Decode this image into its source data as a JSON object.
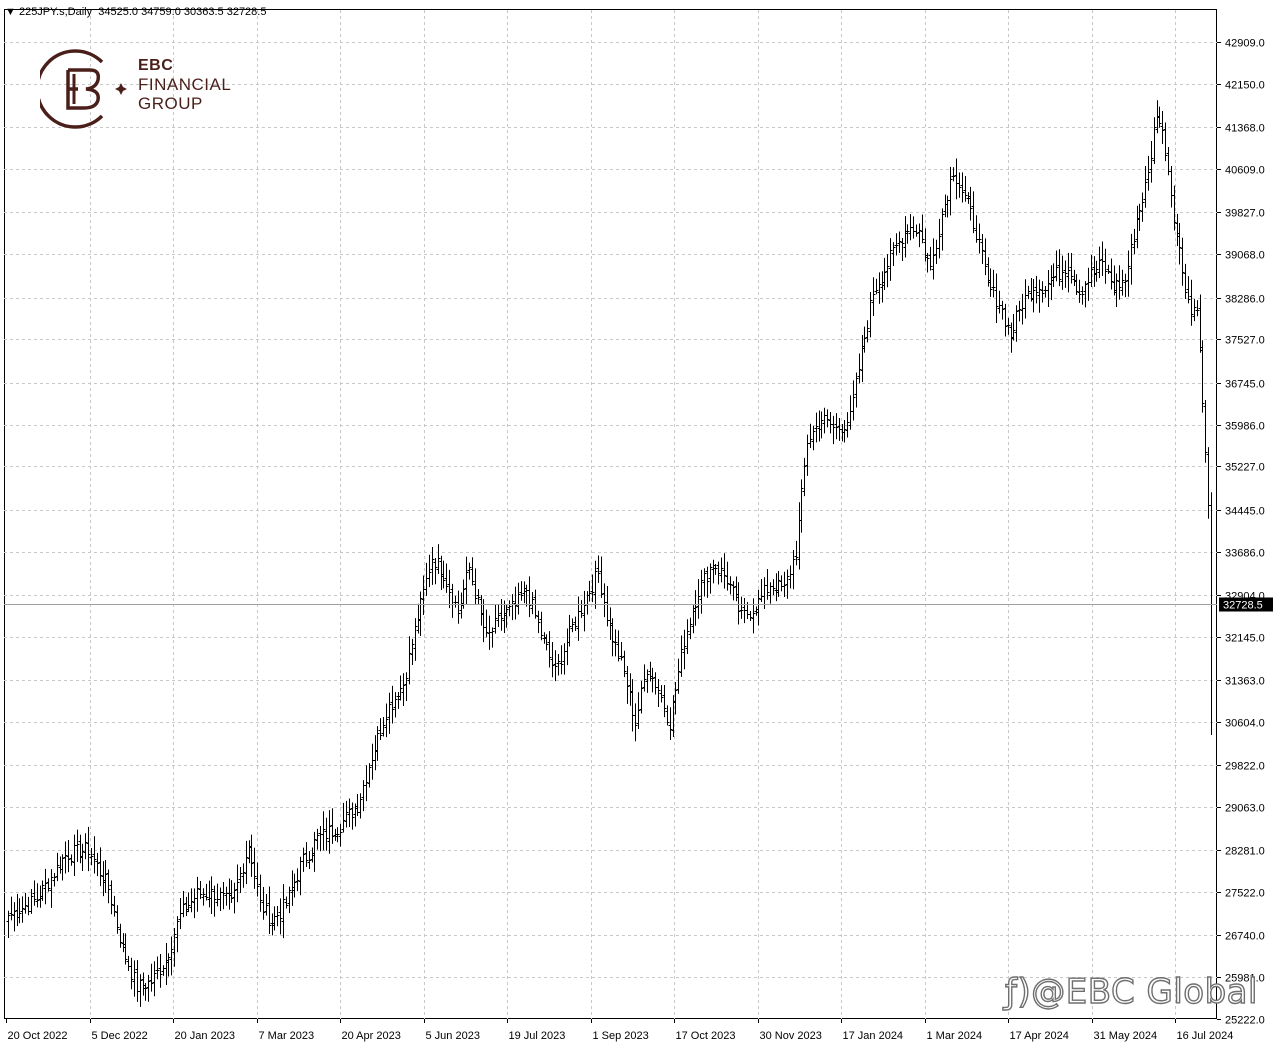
{
  "header": {
    "symbol": "225JPY.s,Daily",
    "ohlc": "34525.0 34759.0 30363.5 32728.5"
  },
  "logo": {
    "line1": "EBC",
    "line2": "FINANCIAL",
    "line3": "GROUP"
  },
  "watermark": "@EBC Global",
  "colors": {
    "background": "#ffffff",
    "bars": "#000000",
    "grid": "#c0c0c0",
    "price_label_bg": "#000000"
  },
  "chart_data": {
    "type": "ohlc",
    "title": "225JPY.s,Daily",
    "ylim": [
      25222.0,
      43293.0
    ],
    "y_ticks": [
      "42909.0",
      "42150.0",
      "41368.0",
      "40609.0",
      "39827.0",
      "39068.0",
      "38286.0",
      "37527.0",
      "36745.0",
      "35986.0",
      "35227.0",
      "34445.0",
      "33686.0",
      "32904.0",
      "32145.0",
      "31363.0",
      "30604.0",
      "29822.0",
      "29063.0",
      "28281.0",
      "27522.0",
      "26740.0",
      "25981.0",
      "25222.0"
    ],
    "x_ticks": [
      "20 Oct 2022",
      "5 Dec 2022",
      "20 Jan 2023",
      "7 Mar 2023",
      "20 Apr 2023",
      "5 Jun 2023",
      "19 Jul 2023",
      "1 Sep 2023",
      "17 Oct 2023",
      "30 Nov 2023",
      "17 Jan 2024",
      "1 Mar 2024",
      "17 Apr 2024",
      "31 May 2024",
      "16 Jul 2024"
    ],
    "current_price": "32728.5",
    "last_bar": {
      "open": 34525.0,
      "high": 34759.0,
      "low": 30363.5,
      "close": 32728.5
    },
    "grid": true,
    "anchors": [
      {
        "bar": 0,
        "close": 27100
      },
      {
        "bar": 10,
        "close": 27400
      },
      {
        "bar": 20,
        "close": 28200
      },
      {
        "bar": 28,
        "close": 28300
      },
      {
        "bar": 35,
        "close": 27600
      },
      {
        "bar": 40,
        "close": 26500
      },
      {
        "bar": 45,
        "close": 25800
      },
      {
        "bar": 50,
        "close": 25900
      },
      {
        "bar": 55,
        "close": 26300
      },
      {
        "bar": 60,
        "close": 27100
      },
      {
        "bar": 66,
        "close": 27500
      },
      {
        "bar": 72,
        "close": 27500
      },
      {
        "bar": 78,
        "close": 27300
      },
      {
        "bar": 84,
        "close": 28400
      },
      {
        "bar": 88,
        "close": 27300
      },
      {
        "bar": 92,
        "close": 27000
      },
      {
        "bar": 97,
        "close": 27300
      },
      {
        "bar": 102,
        "close": 28000
      },
      {
        "bar": 108,
        "close": 28500
      },
      {
        "bar": 115,
        "close": 28700
      },
      {
        "bar": 122,
        "close": 29100
      },
      {
        "bar": 127,
        "close": 30000
      },
      {
        "bar": 132,
        "close": 30800
      },
      {
        "bar": 138,
        "close": 31300
      },
      {
        "bar": 143,
        "close": 32500
      },
      {
        "bar": 148,
        "close": 33600
      },
      {
        "bar": 152,
        "close": 33300
      },
      {
        "bar": 157,
        "close": 32600
      },
      {
        "bar": 161,
        "close": 33400
      },
      {
        "bar": 167,
        "close": 32100
      },
      {
        "bar": 172,
        "close": 32500
      },
      {
        "bar": 177,
        "close": 32700
      },
      {
        "bar": 181,
        "close": 33000
      },
      {
        "bar": 186,
        "close": 32200
      },
      {
        "bar": 191,
        "close": 31500
      },
      {
        "bar": 196,
        "close": 32200
      },
      {
        "bar": 201,
        "close": 32800
      },
      {
        "bar": 206,
        "close": 33300
      },
      {
        "bar": 210,
        "close": 32300
      },
      {
        "bar": 215,
        "close": 31500
      },
      {
        "bar": 219,
        "close": 30600
      },
      {
        "bar": 223,
        "close": 31600
      },
      {
        "bar": 227,
        "close": 31200
      },
      {
        "bar": 231,
        "close": 30600
      },
      {
        "bar": 236,
        "close": 32100
      },
      {
        "bar": 241,
        "close": 33000
      },
      {
        "bar": 246,
        "close": 33500
      },
      {
        "bar": 251,
        "close": 33200
      },
      {
        "bar": 256,
        "close": 32500
      },
      {
        "bar": 261,
        "close": 32700
      },
      {
        "bar": 266,
        "close": 33100
      },
      {
        "bar": 271,
        "close": 33000
      },
      {
        "bar": 275,
        "close": 33700
      },
      {
        "bar": 279,
        "close": 35700
      },
      {
        "bar": 284,
        "close": 36100
      },
      {
        "bar": 289,
        "close": 35900
      },
      {
        "bar": 294,
        "close": 36100
      },
      {
        "bar": 298,
        "close": 37300
      },
      {
        "bar": 302,
        "close": 38400
      },
      {
        "bar": 306,
        "close": 38800
      },
      {
        "bar": 310,
        "close": 39200
      },
      {
        "bar": 314,
        "close": 39600
      },
      {
        "bar": 318,
        "close": 39500
      },
      {
        "bar": 322,
        "close": 38800
      },
      {
        "bar": 326,
        "close": 39800
      },
      {
        "bar": 330,
        "close": 40600
      },
      {
        "bar": 334,
        "close": 40100
      },
      {
        "bar": 338,
        "close": 39500
      },
      {
        "bar": 342,
        "close": 38500
      },
      {
        "bar": 346,
        "close": 38200
      },
      {
        "bar": 350,
        "close": 37600
      },
      {
        "bar": 354,
        "close": 38200
      },
      {
        "bar": 358,
        "close": 38500
      },
      {
        "bar": 362,
        "close": 38500
      },
      {
        "bar": 366,
        "close": 38700
      },
      {
        "bar": 370,
        "close": 38900
      },
      {
        "bar": 374,
        "close": 38400
      },
      {
        "bar": 378,
        "close": 38700
      },
      {
        "bar": 382,
        "close": 38900
      },
      {
        "bar": 386,
        "close": 38500
      },
      {
        "bar": 390,
        "close": 38600
      },
      {
        "bar": 394,
        "close": 39700
      },
      {
        "bar": 398,
        "close": 40500
      },
      {
        "bar": 401,
        "close": 41700
      },
      {
        "bar": 404,
        "close": 41000
      },
      {
        "bar": 407,
        "close": 39800
      },
      {
        "bar": 410,
        "close": 38800
      },
      {
        "bar": 413,
        "close": 38000
      },
      {
        "bar": 415,
        "close": 38200
      },
      {
        "bar": 417,
        "close": 36400
      },
      {
        "bar": 419,
        "close": 34445
      },
      {
        "bar": 420,
        "close": 32728.5
      }
    ]
  }
}
